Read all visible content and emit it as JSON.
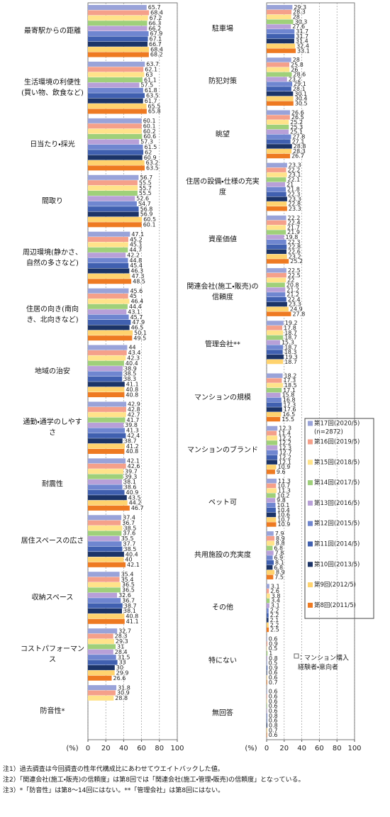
{
  "chart_data": [
    {
      "type": "bar",
      "orientation": "horizontal",
      "xlabel": "(%)",
      "xlim": [
        0,
        100
      ],
      "xticks": [
        0,
        20,
        40,
        60,
        80,
        100
      ],
      "grid": true,
      "categories": [
        "最寄駅からの距離",
        "生活環境の利便性(買い物、飲食など)",
        "日当たり・採光",
        "間取り",
        "周辺環境(静かさ、自然の多さなど)",
        "住居の向き(南向き、北向きなど)",
        "地域の治安",
        "通勤・通学のしやすさ",
        "耐震性",
        "居住スペースの広さ",
        "収納スペース",
        "コストパフォーマンス",
        "防音性*"
      ],
      "series": [
        {
          "color": "#99a3d9",
          "values": [
            65.7,
            63.7,
            60.1,
            56.7,
            47.1,
            45.6,
            44.0,
            42.9,
            42.1,
            37.4,
            35.4,
            32.7,
            31.8
          ]
        },
        {
          "color": "#f5a08a",
          "values": [
            68.4,
            62.1,
            60.1,
            55.5,
            45.2,
            45.0,
            43.4,
            42.8,
            42.6,
            36.7,
            35.4,
            28.3,
            30.9
          ]
        },
        {
          "color": "#ffe38a",
          "values": [
            67.2,
            63.0,
            60.2,
            55.7,
            45.1,
            46.4,
            42.3,
            42.7,
            39.7,
            38.5,
            36.5,
            29.3,
            28.8
          ]
        },
        {
          "color": "#9fd07a",
          "values": [
            66.3,
            61.1,
            60.6,
            55.5,
            44.7,
            44.4,
            40.4,
            41.7,
            39.3,
            37.6,
            36.5,
            31.0,
            null
          ]
        },
        {
          "color": "#b8a0d8",
          "values": [
            66.2,
            57.5,
            57.3,
            52.6,
            42.2,
            43.1,
            38.9,
            39.8,
            38.1,
            35.5,
            32.6,
            28.4,
            null
          ]
        },
        {
          "color": "#6f86d0",
          "values": [
            67.9,
            61.8,
            61.5,
            54.7,
            44.8,
            45.7,
            38.5,
            41.3,
            38.6,
            37.7,
            36.7,
            31.5,
            null
          ]
        },
        {
          "color": "#4060b0",
          "values": [
            67.1,
            63.5,
            62.0,
            56.8,
            45.4,
            47.9,
            38.3,
            42.4,
            40.9,
            38.5,
            38.7,
            33.0,
            null
          ]
        },
        {
          "color": "#1c3468",
          "values": [
            66.7,
            61.7,
            60.9,
            56.9,
            46.3,
            46.5,
            41.1,
            38.7,
            43.5,
            40.4,
            38.1,
            30.0,
            null
          ]
        },
        {
          "color": "#ffd36e",
          "values": [
            68.4,
            65.5,
            63.2,
            60.5,
            47.3,
            50.1,
            40.8,
            41.2,
            44.2,
            40.0,
            40.8,
            29.9,
            null
          ]
        },
        {
          "color": "#ee7a22",
          "values": [
            68.2,
            65.8,
            63.5,
            60.1,
            48.5,
            49.5,
            40.8,
            40.8,
            46.7,
            42.1,
            41.1,
            26.6,
            null
          ]
        }
      ]
    },
    {
      "type": "bar",
      "orientation": "horizontal",
      "xlabel": "(%)",
      "xlim": [
        0,
        100
      ],
      "xticks": [
        0,
        20,
        40,
        60,
        80,
        100
      ],
      "grid": true,
      "categories": [
        "駐車場",
        "防犯対策",
        "眺望",
        "住居の設備・仕様の充実度",
        "資産価値",
        "関連会社(施工・販売)の信頼度",
        "管理会社**",
        "マンションの規模",
        "マンションのブランド",
        "ペット可",
        "共用施設の充実度",
        "その他",
        "特にない",
        "無回答"
      ],
      "legend_note": "(n=2872)",
      "annotation_lines": [
        "：マンション購入",
        "経験者・意向者"
      ],
      "series": [
        {
          "name": "第17回(2020/5)",
          "color": "#99a3d9",
          "values": [
            29.3,
            28.0,
            26.6,
            23.3,
            22.2,
            22.5,
            19.2,
            18.2,
            12.3,
            11.3,
            7.9,
            3.1,
            0.6,
            0.6
          ]
        },
        {
          "name": "第16回(2019/5)",
          "color": "#f5a08a",
          "values": [
            28.3,
            25.8,
            26.5,
            22.2,
            22.4,
            22.5,
            17.8,
            17.3,
            11.4,
            10.7,
            8.9,
            2.6,
            0.9,
            0.6
          ]
        },
        {
          "name": "第15回(2018/5)",
          "color": "#ffe38a",
          "values": [
            28.0,
            26.0,
            25.2,
            23.1,
            21.7,
            22.0,
            18.7,
            18.5,
            12.2,
            11.3,
            8.8,
            3.8,
            0.5,
            0.6
          ]
        },
        {
          "name": "第14回(2017/5)",
          "color": "#9fd07a",
          "values": [
            30.3,
            28.6,
            25.3,
            22.1,
            21.9,
            20.8,
            18.7,
            17.1,
            12.2,
            10.2,
            6.8,
            3.4,
            1.0,
            0.6
          ]
        },
        {
          "name": "第13回(2016/5)",
          "color": "#b8a0d8",
          "values": [
            27.6,
            23.2,
            25.1,
            21.0,
            19.8,
            21.2,
            15.3,
            15.8,
            12.3,
            9.8,
            7.8,
            3.1,
            0.8,
            0.6
          ]
        },
        {
          "name": "第12回(2015/5)",
          "color": "#6f86d0",
          "values": [
            31.7,
            29.1,
            27.8,
            21.8,
            22.3,
            21.2,
            18.7,
            16.8,
            12.7,
            10.1,
            6.9,
            2.2,
            0.5,
            0.8
          ]
        },
        {
          "name": "第11回(2014/5)",
          "color": "#4060b0",
          "values": [
            31.7,
            28.1,
            27.1,
            22.3,
            22.8,
            22.4,
            18.3,
            17.3,
            12.2,
            10.4,
            8.1,
            2.2,
            0.9,
            0.6
          ]
        },
        {
          "name": "第10回(2013/5)",
          "color": "#1c3468",
          "values": [
            31.4,
            30.1,
            28.8,
            23.3,
            22.6,
            23.3,
            19.3,
            17.6,
            12.1,
            10.6,
            6.8,
            2.1,
            0.6,
            0.8
          ]
        },
        {
          "name": "第9回(2012/5)",
          "color": "#ffd36e",
          "values": [
            32.4,
            30.4,
            28.3,
            22.8,
            23.2,
            24.9,
            18.7,
            16.5,
            10.9,
            10.7,
            8.9,
            2.2,
            0.6,
            0.7
          ]
        },
        {
          "name": "第8回(2011/5)",
          "color": "#ee7a22",
          "values": [
            33.1,
            30.5,
            26.7,
            23.3,
            25.2,
            27.8,
            null,
            15.5,
            9.6,
            10.9,
            7.5,
            2.5,
            0.7,
            0.6
          ]
        }
      ]
    }
  ],
  "notes": [
    "注1）過去調査は今回調査の性年代構成比にあわせてウエイトバックした値。",
    "注2）「関連会社(施工・販売)の信頼度」は第8回では「関連会社(施工・管理・販売)の信頼度」となっている。",
    "注3）*「防音性」は第8～14回にはない。**「管理会社」は第8回にはない。"
  ]
}
